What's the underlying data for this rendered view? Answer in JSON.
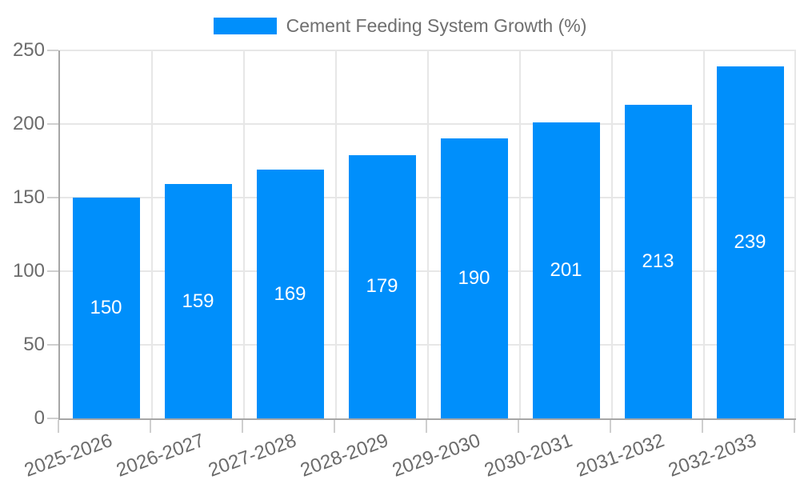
{
  "legend": {
    "label": "Cement Feeding System Growth (%)",
    "swatch_color": "#008FFB"
  },
  "chart_data": {
    "type": "bar",
    "title": "",
    "xlabel": "",
    "ylabel": "",
    "categories": [
      "2025-2026",
      "2026-2027",
      "2027-2028",
      "2028-2029",
      "2029-2030",
      "2030-2031",
      "2031-2032",
      "2032-2033"
    ],
    "series": [
      {
        "name": "Cement Feeding System Growth (%)",
        "values": [
          150,
          159,
          169,
          179,
          190,
          201,
          213,
          239
        ]
      }
    ],
    "value_labels": [
      150,
      159,
      169,
      179,
      190,
      201,
      213,
      239
    ],
    "value_label_position": "inside-center",
    "value_label_color": "#ffffff",
    "ylim": [
      0,
      250
    ],
    "yticks": [
      0,
      50,
      100,
      150,
      200,
      250
    ],
    "grid": true,
    "legend_position": "top-center",
    "bar_color": "#008FFB"
  },
  "colors": {
    "bar": "#008FFB",
    "grid": "#e7e7e7",
    "axis": "#a6a6a6",
    "tick": "#cfcfcf",
    "label_text": "#6b6b6b",
    "background": "#ffffff"
  }
}
